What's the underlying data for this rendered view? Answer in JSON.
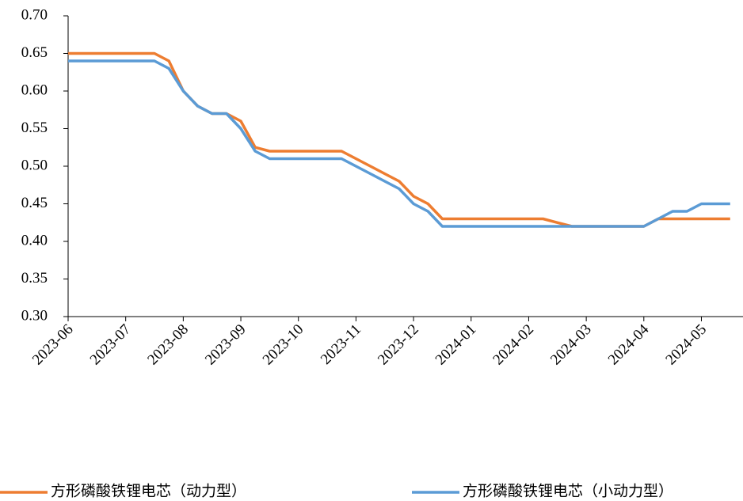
{
  "chart_data": {
    "type": "line",
    "categories": [
      "2023-06",
      null,
      null,
      null,
      "2023-07",
      null,
      null,
      null,
      "2023-08",
      null,
      null,
      null,
      "2023-09",
      null,
      null,
      null,
      "2023-10",
      null,
      null,
      null,
      "2023-11",
      null,
      null,
      null,
      "2023-12",
      null,
      null,
      null,
      "2024-01",
      null,
      null,
      null,
      "2024-02",
      null,
      null,
      null,
      "2024-03",
      null,
      null,
      null,
      "2024-04",
      null,
      null,
      null,
      "2024-05",
      null,
      null
    ],
    "series": [
      {
        "name": "方形磷酸铁锂电芯（动力型）",
        "color": "#ed7d31",
        "values": [
          0.65,
          0.65,
          0.65,
          0.65,
          0.65,
          0.65,
          0.65,
          0.64,
          0.6,
          0.58,
          0.57,
          0.57,
          0.56,
          0.525,
          0.52,
          0.52,
          0.52,
          0.52,
          0.52,
          0.52,
          0.51,
          0.5,
          0.49,
          0.48,
          0.46,
          0.45,
          0.43,
          0.43,
          0.43,
          0.43,
          0.43,
          0.43,
          0.43,
          0.43,
          0.425,
          0.42,
          0.42,
          0.42,
          0.42,
          0.42,
          0.42,
          0.43,
          0.43,
          0.43,
          0.43,
          0.43,
          0.43
        ]
      },
      {
        "name": "方形磷酸铁锂电芯（小动力型）",
        "color": "#5b9bd5",
        "values": [
          0.64,
          0.64,
          0.64,
          0.64,
          0.64,
          0.64,
          0.64,
          0.63,
          0.6,
          0.58,
          0.57,
          0.57,
          0.55,
          0.52,
          0.51,
          0.51,
          0.51,
          0.51,
          0.51,
          0.51,
          0.5,
          0.49,
          0.48,
          0.47,
          0.45,
          0.44,
          0.42,
          0.42,
          0.42,
          0.42,
          0.42,
          0.42,
          0.42,
          0.42,
          0.42,
          0.42,
          0.42,
          0.42,
          0.42,
          0.42,
          0.42,
          0.43,
          0.44,
          0.44,
          0.45,
          0.45,
          0.45
        ]
      }
    ],
    "ylim": [
      0.3,
      0.7
    ],
    "yticks": [
      {
        "value": 0.3,
        "label": "0.30"
      },
      {
        "value": 0.35,
        "label": "0.35"
      },
      {
        "value": 0.4,
        "label": "0.40"
      },
      {
        "value": 0.45,
        "label": "0.45"
      },
      {
        "value": 0.5,
        "label": "0.50"
      },
      {
        "value": 0.55,
        "label": "0.55"
      },
      {
        "value": 0.6,
        "label": "0.60"
      },
      {
        "value": 0.65,
        "label": "0.65"
      },
      {
        "value": 0.7,
        "label": "0.70"
      }
    ],
    "legend": "bottom"
  }
}
